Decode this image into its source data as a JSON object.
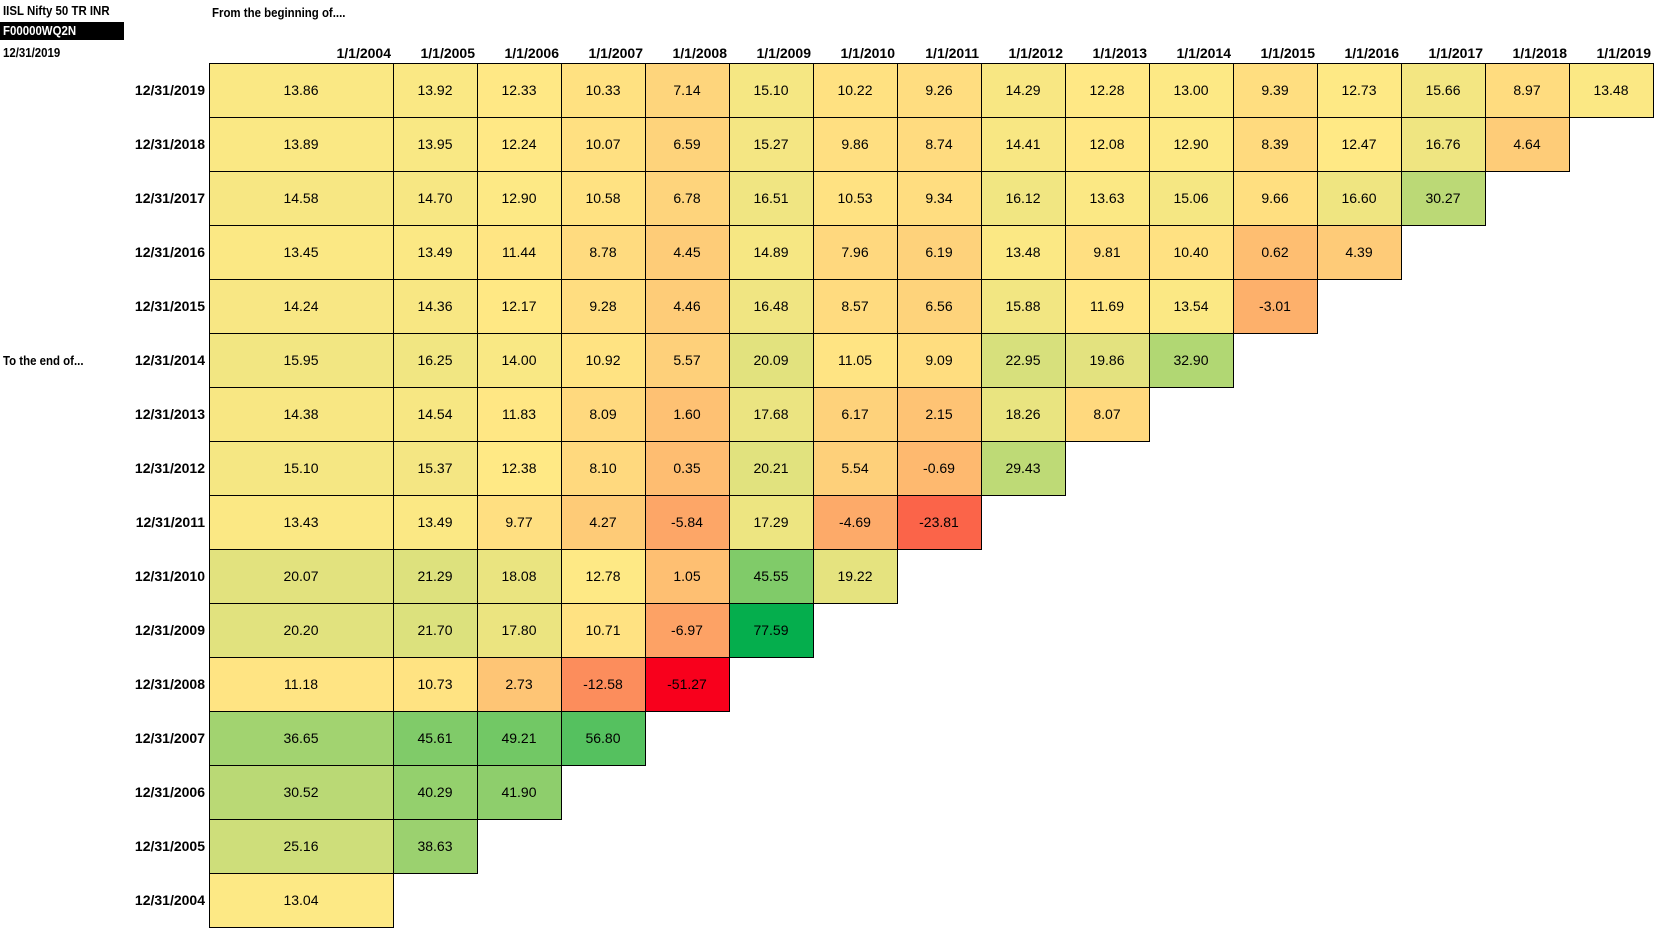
{
  "header": {
    "fund_name": "IISL Nifty 50 TR INR",
    "fund_id": "F00000WQ2N",
    "as_of": "12/31/2019",
    "from_label": "From the beginning of....",
    "to_label": "To the end of..."
  },
  "chart_data": {
    "type": "heatmap",
    "x": [
      "1/1/2004",
      "1/1/2005",
      "1/1/2006",
      "1/1/2007",
      "1/1/2008",
      "1/1/2009",
      "1/1/2010",
      "1/1/2011",
      "1/1/2012",
      "1/1/2013",
      "1/1/2014",
      "1/1/2015",
      "1/1/2016",
      "1/1/2017",
      "1/1/2018",
      "1/1/2019"
    ],
    "y": [
      "12/31/2019",
      "12/31/2018",
      "12/31/2017",
      "12/31/2016",
      "12/31/2015",
      "12/31/2014",
      "12/31/2013",
      "12/31/2012",
      "12/31/2011",
      "12/31/2010",
      "12/31/2009",
      "12/31/2008",
      "12/31/2007",
      "12/31/2006",
      "12/31/2005",
      "12/31/2004"
    ],
    "values": [
      [
        "13.86",
        "13.92",
        "12.33",
        "10.33",
        "7.14",
        "15.10",
        "10.22",
        "9.26",
        "14.29",
        "12.28",
        "13.00",
        "9.39",
        "12.73",
        "15.66",
        "8.97",
        "13.48"
      ],
      [
        "13.89",
        "13.95",
        "12.24",
        "10.07",
        "6.59",
        "15.27",
        "9.86",
        "8.74",
        "14.41",
        "12.08",
        "12.90",
        "8.39",
        "12.47",
        "16.76",
        "4.64"
      ],
      [
        "14.58",
        "14.70",
        "12.90",
        "10.58",
        "6.78",
        "16.51",
        "10.53",
        "9.34",
        "16.12",
        "13.63",
        "15.06",
        "9.66",
        "16.60",
        "30.27"
      ],
      [
        "13.45",
        "13.49",
        "11.44",
        "8.78",
        "4.45",
        "14.89",
        "7.96",
        "6.19",
        "13.48",
        "9.81",
        "10.40",
        "0.62",
        "4.39"
      ],
      [
        "14.24",
        "14.36",
        "12.17",
        "9.28",
        "4.46",
        "16.48",
        "8.57",
        "6.56",
        "15.88",
        "11.69",
        "13.54",
        "-3.01"
      ],
      [
        "15.95",
        "16.25",
        "14.00",
        "10.92",
        "5.57",
        "20.09",
        "11.05",
        "9.09",
        "22.95",
        "19.86",
        "32.90"
      ],
      [
        "14.38",
        "14.54",
        "11.83",
        "8.09",
        "1.60",
        "17.68",
        "6.17",
        "2.15",
        "18.26",
        "8.07"
      ],
      [
        "15.10",
        "15.37",
        "12.38",
        "8.10",
        "0.35",
        "20.21",
        "5.54",
        "-0.69",
        "29.43"
      ],
      [
        "13.43",
        "13.49",
        "9.77",
        "4.27",
        "-5.84",
        "17.29",
        "-4.69",
        "-23.81"
      ],
      [
        "20.07",
        "21.29",
        "18.08",
        "12.78",
        "1.05",
        "45.55",
        "19.22"
      ],
      [
        "20.20",
        "21.70",
        "17.80",
        "10.71",
        "-6.97",
        "77.59"
      ],
      [
        "11.18",
        "10.73",
        "2.73",
        "-12.58",
        "-51.27"
      ],
      [
        "36.65",
        "45.61",
        "49.21",
        "56.80"
      ],
      [
        "30.52",
        "40.29",
        "41.90"
      ],
      [
        "25.16",
        "38.63"
      ],
      [
        "13.04"
      ]
    ],
    "color_scale": {
      "low": "#f8001c",
      "mid": "#ffe985",
      "high": "#05ae4d"
    }
  }
}
